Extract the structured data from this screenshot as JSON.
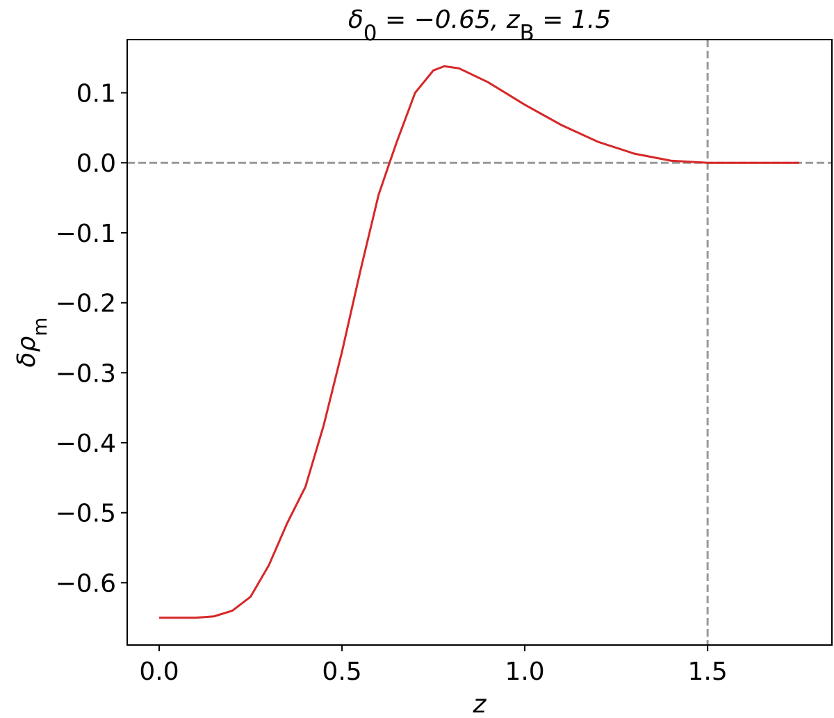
{
  "chart_data": {
    "type": "line",
    "title": [
      {
        "text": "δ"
      },
      {
        "text": "0",
        "sub": true
      },
      {
        "text": " = −0.65,  z"
      },
      {
        "text": "B",
        "sub": true
      },
      {
        "text": " = 1.5"
      }
    ],
    "xlabel": "z",
    "ylabel": [
      {
        "text": "δρ"
      },
      {
        "text": "m",
        "sub": true
      }
    ],
    "x": [
      0,
      0.1,
      0.15,
      0.2,
      0.25,
      0.3,
      0.35,
      0.4,
      0.45,
      0.5,
      0.55,
      0.6,
      0.63,
      0.65,
      0.7,
      0.75,
      0.78,
      0.82,
      0.9,
      1.0,
      1.1,
      1.2,
      1.3,
      1.4,
      1.5,
      1.6,
      1.75
    ],
    "series": [
      {
        "color": "#d62728",
        "values": [
          -0.65,
          -0.65,
          -0.648,
          -0.64,
          -0.62,
          -0.575,
          -0.515,
          -0.463,
          -0.375,
          -0.27,
          -0.155,
          -0.046,
          0.0,
          0.03,
          0.1,
          0.132,
          0.138,
          0.135,
          0.115,
          0.083,
          0.054,
          0.03,
          0.013,
          0.003,
          0,
          0,
          0
        ]
      }
    ],
    "hline": 0,
    "vline": 1.5,
    "ref_color": "#999999",
    "xlim": [
      -0.0875,
      1.84
    ],
    "ylim": [
      -0.689,
      0.176
    ],
    "xticks": [
      {
        "value": 0,
        "label": "0.0"
      },
      0.5,
      {
        "value": 1,
        "label": "1.0"
      },
      1.5
    ],
    "yticks": [
      {
        "value": -0.6,
        "label": "−0.6"
      },
      {
        "value": -0.5,
        "label": "−0.5"
      },
      {
        "value": -0.4,
        "label": "−0.4"
      },
      {
        "value": -0.3,
        "label": "−0.3"
      },
      {
        "value": -0.2,
        "label": "−0.2"
      },
      {
        "value": -0.1,
        "label": "−0.1"
      },
      {
        "value": 0,
        "label": "0.0"
      },
      0.1
    ],
    "grid": false
  }
}
